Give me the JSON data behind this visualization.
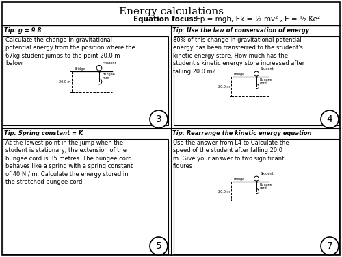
{
  "title": "Energy calculations",
  "equation_focus_bold": "Equation focus:",
  "equation_focus_rest": " Ep = mgh, Ek = ½ mv² , E = ½ Ke²",
  "bg_color": "#ffffff",
  "tip3": "Tip: g = 9.8",
  "tip4": "Tip: Use the law of conservation of energy",
  "tip5": "Tip: Spring constant = K",
  "tip7": "Tip: Rearrange the kinetic energy equation",
  "text3": "Calculate the change in gravitational\npotential energy from the position where the\n67kg student jumps to the point 20.0 m\nbelow",
  "text4": "80% of this change in gravitational potential\nenergy has been transferred to the student's\nkinetic energy store. How much has the\nstudent's kinetic energy store increased after\nfalling 20.0 m?",
  "text5": "At the lowest point in the jump when the\nstudent is stationary, the extension of the\nbungee cord is 35 metres. The bungee cord\nbehaves like a spring with a spring constant\nof 40 N / m. Calculate the energy stored in\nthe stretched bungee cord",
  "text7": "Use the answer from L4 to Calculate the\nspeed of the student after falling 20.0\nm .Give your answer to two significant\nfigures",
  "num3": "3",
  "num4": "4",
  "num5": "5",
  "num7": "7"
}
